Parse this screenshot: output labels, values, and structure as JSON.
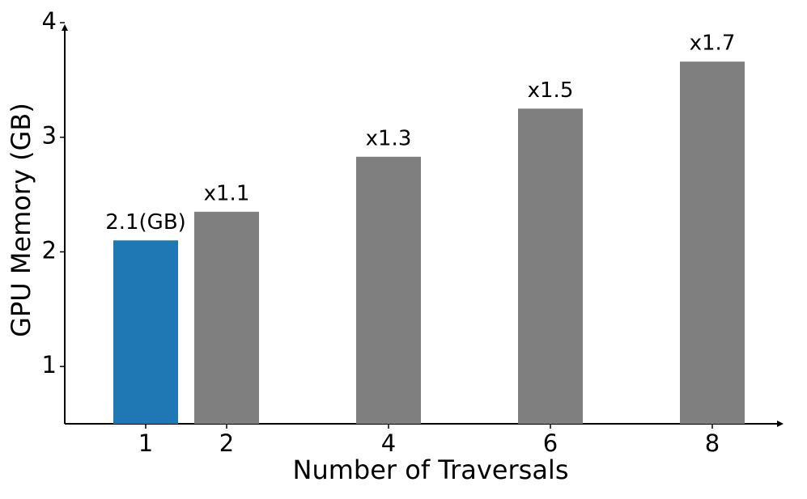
{
  "chart_data": {
    "type": "bar",
    "x_label": "Number of Traversals",
    "y_label": "GPU Memory (GB)",
    "x": [
      1,
      2,
      4,
      6,
      8
    ],
    "values": [
      2.1,
      2.35,
      2.83,
      3.25,
      3.66
    ],
    "annotations": [
      "2.1(GB)",
      "x1.1",
      "x1.3",
      "x1.5",
      "x1.7"
    ],
    "colors": [
      "#1f77b4",
      "#7f7f7f",
      "#7f7f7f",
      "#7f7f7f",
      "#7f7f7f"
    ],
    "xlim": [
      0,
      8.8
    ],
    "xticks": [
      1,
      2,
      4,
      6,
      8
    ],
    "ylim": [
      0.5,
      4
    ],
    "yticks": [
      1,
      2,
      3,
      4
    ],
    "grid": false
  }
}
